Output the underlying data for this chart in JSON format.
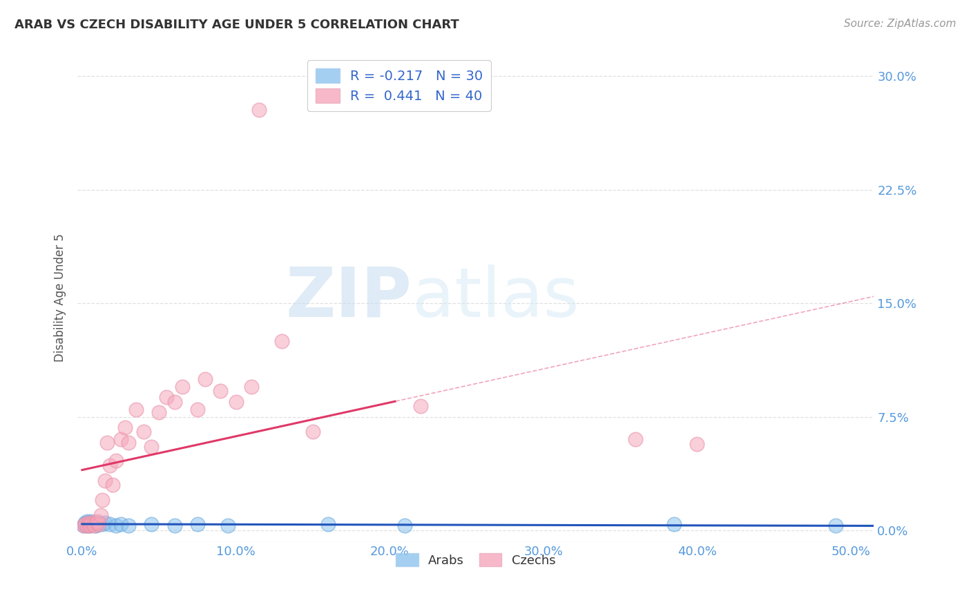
{
  "title": "ARAB VS CZECH DISABILITY AGE UNDER 5 CORRELATION CHART",
  "source": "Source: ZipAtlas.com",
  "ylabel": "Disability Age Under 5",
  "xlabel_ticks": [
    "0.0%",
    "10.0%",
    "20.0%",
    "30.0%",
    "40.0%",
    "50.0%"
  ],
  "xlabel_vals": [
    0.0,
    0.1,
    0.2,
    0.3,
    0.4,
    0.5
  ],
  "ylabel_ticks": [
    "0.0%",
    "7.5%",
    "15.0%",
    "22.5%",
    "30.0%"
  ],
  "ylabel_vals": [
    0.0,
    0.075,
    0.15,
    0.225,
    0.3
  ],
  "xlim": [
    -0.003,
    0.515
  ],
  "ylim": [
    -0.008,
    0.315
  ],
  "arab_R": -0.217,
  "arab_N": 30,
  "czech_R": 0.441,
  "czech_N": 40,
  "arab_color": "#8EC4EE",
  "czech_color": "#F5A8BC",
  "arab_line_color": "#2255BB",
  "czech_line_color": "#E03868",
  "arab_marker_edge": "#6AAADE",
  "czech_marker_edge": "#E890A8",
  "arab_x": [
    0.001,
    0.002,
    0.002,
    0.003,
    0.003,
    0.004,
    0.004,
    0.005,
    0.005,
    0.006,
    0.006,
    0.007,
    0.008,
    0.009,
    0.01,
    0.011,
    0.013,
    0.015,
    0.018,
    0.022,
    0.025,
    0.03,
    0.045,
    0.06,
    0.075,
    0.095,
    0.16,
    0.21,
    0.385,
    0.49
  ],
  "arab_y": [
    0.003,
    0.004,
    0.005,
    0.003,
    0.006,
    0.004,
    0.005,
    0.003,
    0.005,
    0.004,
    0.006,
    0.004,
    0.005,
    0.003,
    0.004,
    0.005,
    0.004,
    0.005,
    0.004,
    0.003,
    0.004,
    0.003,
    0.004,
    0.003,
    0.004,
    0.003,
    0.004,
    0.003,
    0.004,
    0.003
  ],
  "czech_x": [
    0.001,
    0.002,
    0.003,
    0.004,
    0.005,
    0.005,
    0.006,
    0.007,
    0.008,
    0.009,
    0.01,
    0.011,
    0.012,
    0.013,
    0.015,
    0.016,
    0.018,
    0.02,
    0.022,
    0.025,
    0.028,
    0.03,
    0.035,
    0.04,
    0.045,
    0.05,
    0.055,
    0.06,
    0.065,
    0.075,
    0.08,
    0.09,
    0.1,
    0.11,
    0.115,
    0.13,
    0.15,
    0.22,
    0.36,
    0.4
  ],
  "czech_y": [
    0.003,
    0.004,
    0.003,
    0.005,
    0.004,
    0.003,
    0.005,
    0.004,
    0.003,
    0.005,
    0.006,
    0.004,
    0.01,
    0.02,
    0.033,
    0.058,
    0.043,
    0.03,
    0.046,
    0.06,
    0.068,
    0.058,
    0.08,
    0.065,
    0.055,
    0.078,
    0.088,
    0.085,
    0.095,
    0.08,
    0.1,
    0.092,
    0.085,
    0.095,
    0.278,
    0.125,
    0.065,
    0.082,
    0.06,
    0.057
  ],
  "watermark_zip": "ZIP",
  "watermark_atlas": "atlas",
  "background_color": "#FFFFFF",
  "grid_color": "#DDDDDD",
  "tick_color": "#5599DD",
  "legend_text_color": "#3366CC",
  "title_color": "#333333"
}
